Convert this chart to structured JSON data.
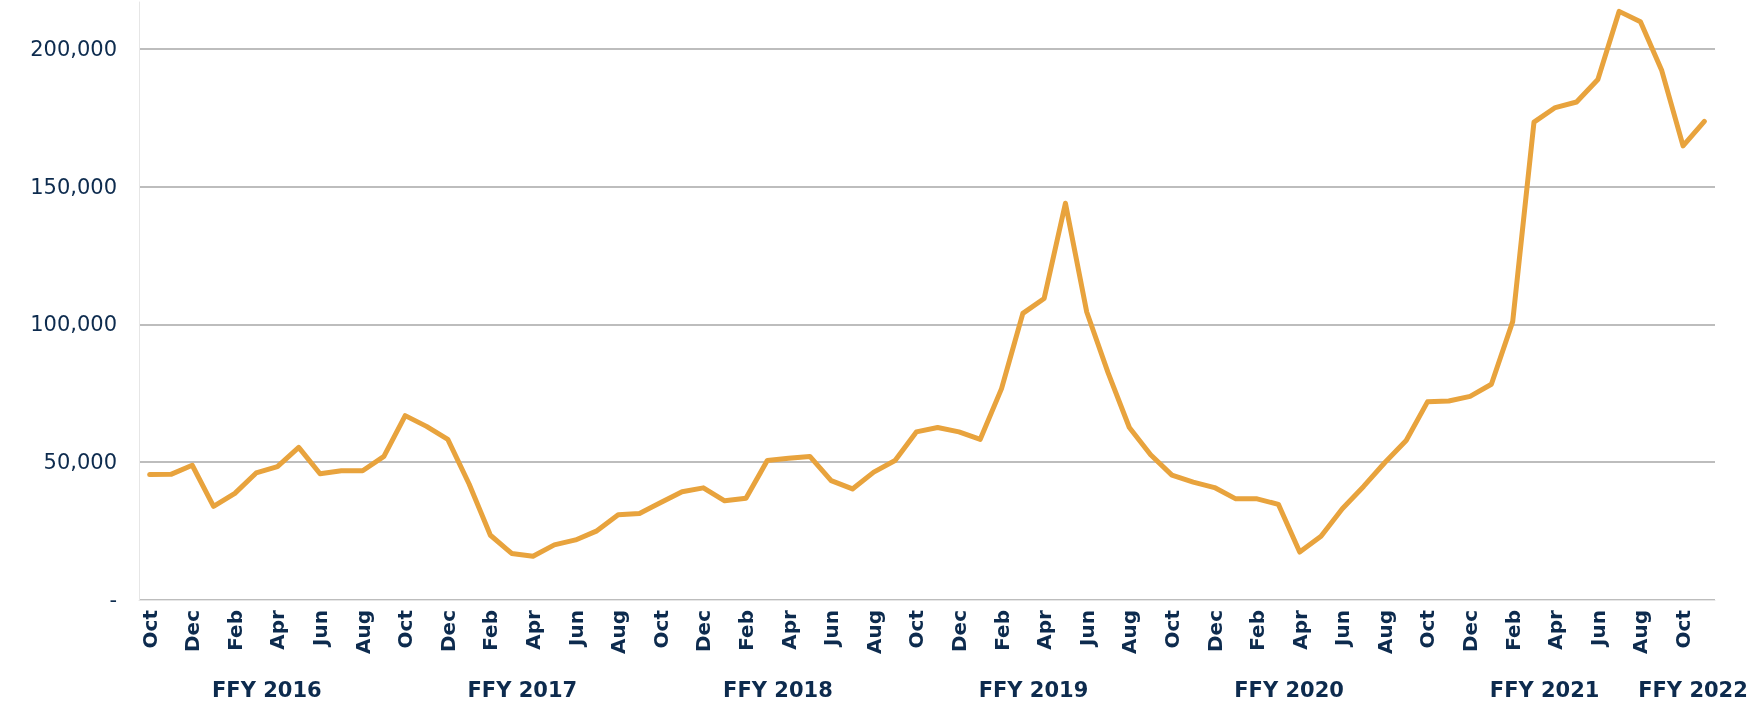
{
  "chart_data": {
    "type": "line",
    "categories": [
      "Oct",
      null,
      "Dec",
      null,
      "Feb",
      null,
      "Apr",
      null,
      "Jun",
      null,
      "Aug",
      null,
      "Oct",
      null,
      "Dec",
      null,
      "Feb",
      null,
      "Apr",
      null,
      "Jun",
      null,
      "Aug",
      null,
      "Oct",
      null,
      "Dec",
      null,
      "Feb",
      null,
      "Apr",
      null,
      "Jun",
      null,
      "Aug",
      null,
      "Oct",
      null,
      "Dec",
      null,
      "Feb",
      null,
      "Apr",
      null,
      "Jun",
      null,
      "Aug",
      null,
      "Oct",
      null,
      "Dec",
      null,
      "Feb",
      null,
      "Apr",
      null,
      "Jun",
      null,
      "Aug",
      null,
      "Oct",
      null,
      "Dec",
      null,
      "Feb",
      null,
      "Apr",
      null,
      "Jun",
      null,
      "Aug",
      null,
      "Oct",
      null
    ],
    "series": [
      {
        "color": "#e8a33d",
        "values": [
          45500,
          45600,
          48900,
          34000,
          38700,
          46100,
          48400,
          55400,
          45800,
          46900,
          46900,
          52100,
          66900,
          63000,
          58300,
          42100,
          23500,
          16900,
          15900,
          20000,
          21800,
          25100,
          30900,
          31400,
          35400,
          39300,
          40700,
          36000,
          36900,
          50600,
          51400,
          52100,
          43300,
          40300,
          46400,
          50600,
          61000,
          62600,
          61000,
          58300,
          76700,
          104000,
          109400,
          144000,
          104500,
          82500,
          62600,
          52700,
          45300,
          42800,
          40800,
          36700,
          36700,
          34700,
          17400,
          23100,
          33100,
          41200,
          49900,
          57900,
          71900,
          72200,
          73900,
          78300,
          101000,
          173400,
          178700,
          180700,
          188900,
          213600,
          209800,
          192100,
          164800,
          173700
        ]
      }
    ],
    "annotations": [
      "FFY 2016",
      "FFY 2017",
      "FFY 2018",
      "FFY 2019",
      "FFY 2020",
      "FFY 2021",
      "FFY 2022"
    ],
    "ylim": [
      0,
      217000
    ],
    "yticks": [
      {
        "value": 0,
        "label": "-"
      },
      {
        "value": 50000,
        "label": "50,000"
      },
      {
        "value": 100000,
        "label": "100,000"
      },
      {
        "value": 150000,
        "label": "150,000"
      },
      {
        "value": 200000,
        "label": "200,000"
      }
    ],
    "grid": "y",
    "marker": "none",
    "line_style": "solid"
  }
}
